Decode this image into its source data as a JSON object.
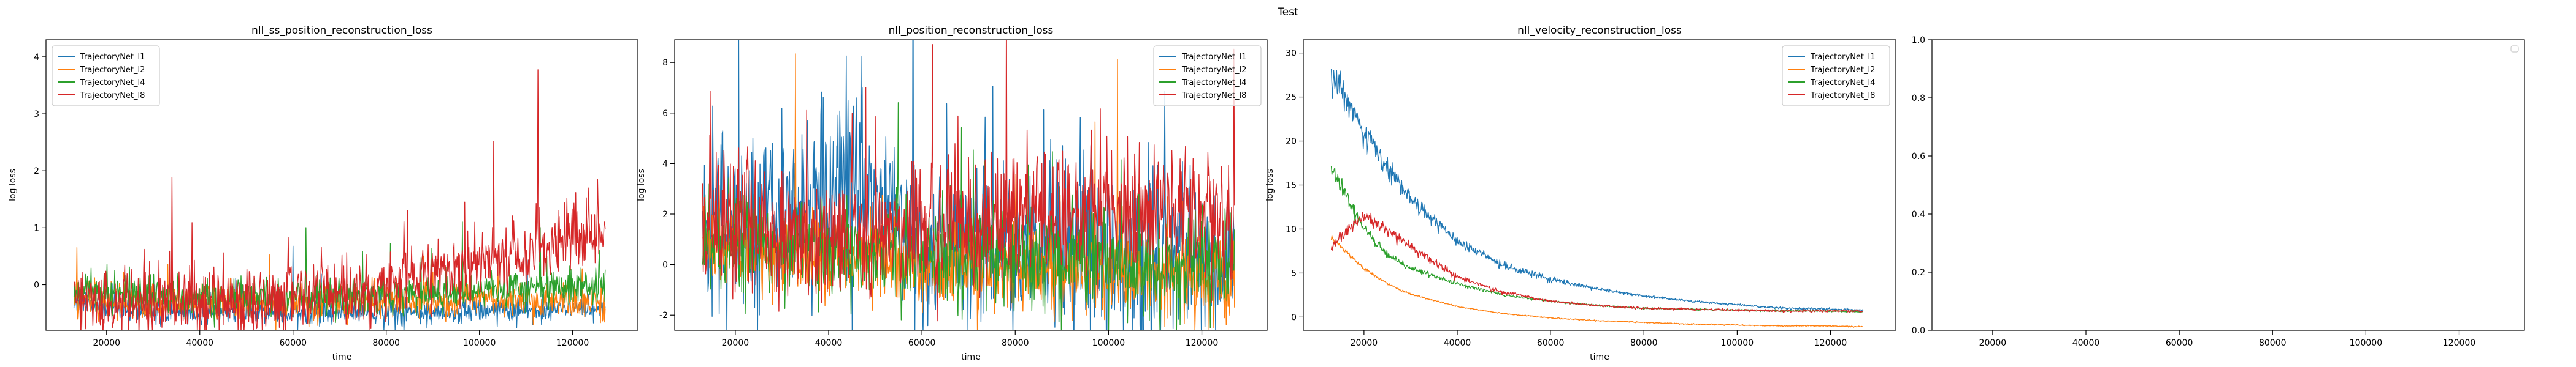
{
  "figure": {
    "suptitle": "Test"
  },
  "chart_data": [
    {
      "type": "line",
      "title": "nll_ss_position_reconstruction_loss",
      "xlabel": "time",
      "ylabel": "log loss",
      "xlim": [
        7000,
        134000
      ],
      "ylim": [
        -0.8,
        4.3
      ],
      "xticks": [
        20000,
        40000,
        60000,
        80000,
        100000,
        120000
      ],
      "yticks": [
        0,
        1,
        2,
        3,
        4
      ],
      "legend_position": "top-left",
      "grid": false,
      "series": [
        {
          "name": "TrajectoryNet_l1",
          "color": "#1f77b4",
          "x": [
            13000,
            20000,
            30000,
            40000,
            50000,
            60000,
            70000,
            80000,
            90000,
            100000,
            110000,
            120000,
            127000
          ],
          "y": [
            -0.3,
            -0.4,
            -0.45,
            -0.5,
            -0.45,
            -0.5,
            -0.45,
            -0.45,
            -0.5,
            -0.45,
            -0.45,
            -0.4,
            -0.4
          ]
        },
        {
          "name": "TrajectoryNet_l2",
          "color": "#ff7f0e",
          "x": [
            13000,
            20000,
            30000,
            40000,
            50000,
            60000,
            70000,
            80000,
            90000,
            100000,
            110000,
            120000,
            127000
          ],
          "y": [
            -0.3,
            -0.3,
            -0.35,
            -0.3,
            -0.3,
            -0.35,
            -0.3,
            -0.3,
            -0.3,
            -0.25,
            -0.3,
            -0.3,
            -0.3
          ]
        },
        {
          "name": "TrajectoryNet_l4",
          "color": "#2ca02c",
          "x": [
            13000,
            20000,
            30000,
            40000,
            50000,
            60000,
            70000,
            80000,
            90000,
            100000,
            110000,
            120000,
            127000
          ],
          "y": [
            -0.1,
            -0.15,
            -0.2,
            -0.25,
            -0.2,
            -0.2,
            -0.2,
            -0.2,
            -0.15,
            -0.1,
            -0.05,
            -0.05,
            0.0
          ]
        },
        {
          "name": "TrajectoryNet_l8",
          "color": "#d62728",
          "x": [
            13000,
            20000,
            30000,
            40000,
            50000,
            60000,
            70000,
            80000,
            90000,
            100000,
            110000,
            120000,
            127000
          ],
          "y": [
            -0.2,
            -0.3,
            -0.35,
            -0.3,
            -0.3,
            -0.2,
            -0.1,
            0.0,
            0.2,
            0.4,
            0.5,
            0.8,
            0.9
          ]
        }
      ]
    },
    {
      "type": "line",
      "title": "nll_position_reconstruction_loss",
      "xlabel": "time",
      "ylabel": "log loss",
      "xlim": [
        7000,
        134000
      ],
      "ylim": [
        -2.6,
        8.9
      ],
      "xticks": [
        20000,
        40000,
        60000,
        80000,
        100000,
        120000
      ],
      "yticks": [
        -2,
        0,
        2,
        4,
        6,
        8
      ],
      "legend_position": "top-right",
      "grid": false,
      "series": [
        {
          "name": "TrajectoryNet_l1",
          "color": "#1f77b4",
          "x": [
            13000,
            20000,
            30000,
            40000,
            50000,
            60000,
            70000,
            80000,
            90000,
            100000,
            110000,
            120000,
            127000
          ],
          "y": [
            1.5,
            1.5,
            2.0,
            3.0,
            2.5,
            1.0,
            0.8,
            0.6,
            0.5,
            0.5,
            0.3,
            0.2,
            0.0
          ]
        },
        {
          "name": "TrajectoryNet_l2",
          "color": "#ff7f0e",
          "x": [
            13000,
            20000,
            30000,
            40000,
            50000,
            60000,
            70000,
            80000,
            90000,
            100000,
            110000,
            120000,
            127000
          ],
          "y": [
            0.8,
            0.8,
            0.5,
            0.3,
            0.2,
            0.0,
            0.0,
            -0.2,
            -0.3,
            -0.4,
            -0.4,
            -0.6,
            -0.6
          ]
        },
        {
          "name": "TrajectoryNet_l4",
          "color": "#2ca02c",
          "x": [
            13000,
            20000,
            30000,
            40000,
            50000,
            60000,
            70000,
            80000,
            90000,
            100000,
            110000,
            120000,
            127000
          ],
          "y": [
            1.0,
            1.0,
            0.8,
            0.6,
            0.5,
            0.4,
            0.3,
            0.2,
            0.2,
            0.2,
            0.1,
            0.0,
            0.0
          ]
        },
        {
          "name": "TrajectoryNet_l8",
          "color": "#d62728",
          "x": [
            13000,
            20000,
            30000,
            40000,
            50000,
            60000,
            70000,
            80000,
            90000,
            100000,
            110000,
            120000,
            127000
          ],
          "y": [
            1.2,
            1.5,
            1.2,
            1.0,
            1.0,
            1.2,
            1.5,
            1.8,
            2.0,
            2.0,
            2.0,
            2.2,
            2.0
          ]
        }
      ]
    },
    {
      "type": "line",
      "title": "nll_velocity_reconstruction_loss",
      "xlabel": "time",
      "ylabel": "log loss",
      "xlim": [
        7000,
        134000
      ],
      "ylim": [
        -1.5,
        31.5
      ],
      "xticks": [
        20000,
        40000,
        60000,
        80000,
        100000,
        120000
      ],
      "yticks": [
        0,
        5,
        10,
        15,
        20,
        25,
        30
      ],
      "legend_position": "top-right",
      "grid": false,
      "series": [
        {
          "name": "TrajectoryNet_l1",
          "color": "#1f77b4",
          "x": [
            13000,
            15000,
            20000,
            25000,
            30000,
            40000,
            50000,
            60000,
            70000,
            80000,
            90000,
            100000,
            110000,
            120000,
            127000
          ],
          "y": [
            27.0,
            26.0,
            21.0,
            17.0,
            13.5,
            8.5,
            5.8,
            4.3,
            3.2,
            2.4,
            1.8,
            1.4,
            1.0,
            0.9,
            0.8
          ]
        },
        {
          "name": "TrajectoryNet_l2",
          "color": "#ff7f0e",
          "x": [
            13000,
            15000,
            20000,
            25000,
            30000,
            40000,
            50000,
            60000,
            70000,
            80000,
            90000,
            100000,
            110000,
            120000,
            127000
          ],
          "y": [
            9.0,
            8.0,
            5.5,
            3.8,
            2.6,
            1.2,
            0.4,
            -0.1,
            -0.4,
            -0.6,
            -0.8,
            -0.9,
            -1.0,
            -1.0,
            -1.1
          ]
        },
        {
          "name": "TrajectoryNet_l4",
          "color": "#2ca02c",
          "x": [
            13000,
            15000,
            20000,
            25000,
            30000,
            40000,
            50000,
            60000,
            70000,
            80000,
            90000,
            100000,
            110000,
            120000,
            127000
          ],
          "y": [
            16.5,
            15.0,
            10.0,
            7.0,
            5.5,
            3.8,
            2.5,
            1.8,
            1.3,
            1.0,
            0.9,
            0.8,
            0.7,
            0.7,
            0.6
          ]
        },
        {
          "name": "TrajectoryNet_l8",
          "color": "#d62728",
          "x": [
            13000,
            15000,
            20000,
            25000,
            30000,
            40000,
            50000,
            60000,
            70000,
            80000,
            90000,
            100000,
            110000,
            120000,
            127000
          ],
          "y": [
            8.0,
            9.0,
            11.5,
            10.0,
            8.0,
            4.5,
            2.8,
            1.8,
            1.3,
            1.0,
            0.9,
            0.8,
            0.7,
            0.7,
            0.7
          ]
        }
      ]
    },
    {
      "type": "line",
      "title": "",
      "xlabel": "",
      "ylabel": "",
      "xlim": [
        7000,
        134000
      ],
      "ylim": [
        0.0,
        1.0
      ],
      "xticks": [
        20000,
        40000,
        60000,
        80000,
        100000,
        120000
      ],
      "yticks": [
        0.0,
        0.2,
        0.4,
        0.6,
        0.8,
        1.0
      ],
      "ytick_labels": [
        "0.0",
        "0.2",
        "0.4",
        "0.6",
        "0.8",
        "1.0"
      ],
      "legend_position": "top-right",
      "grid": false,
      "series": []
    }
  ]
}
